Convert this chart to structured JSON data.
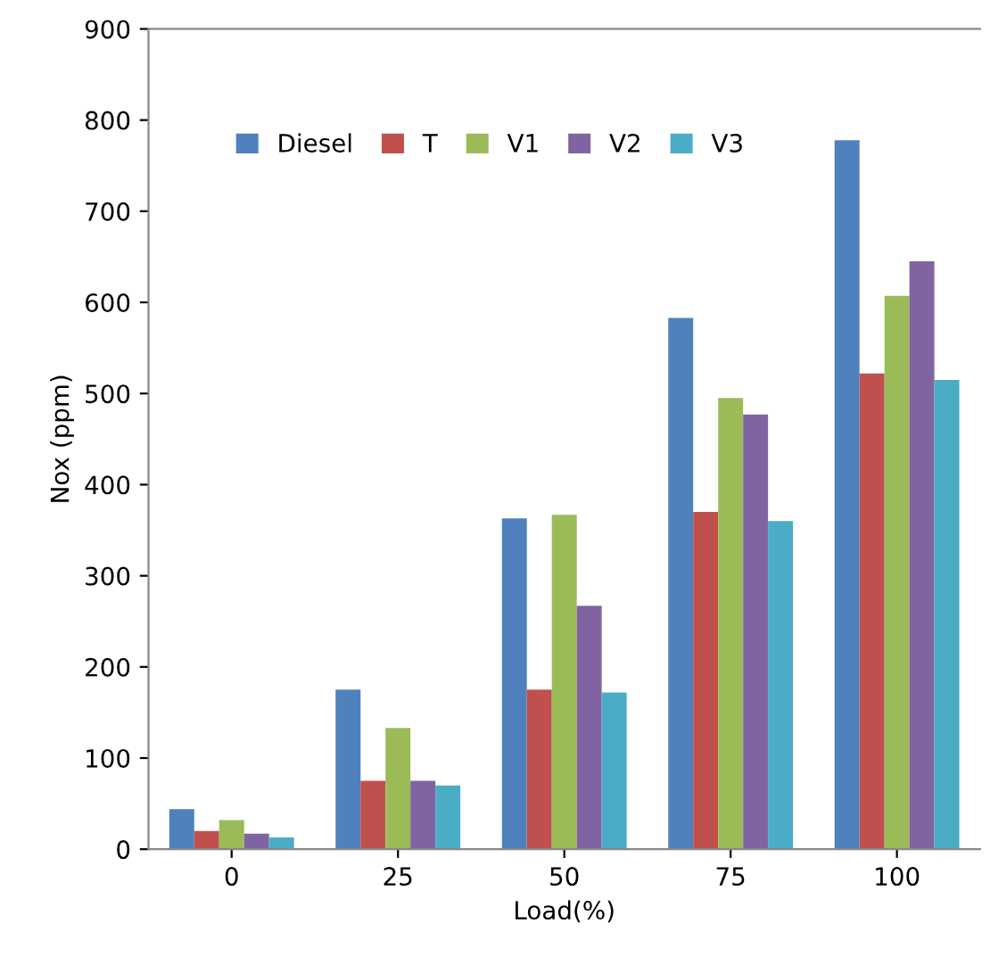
{
  "chart_data": {
    "type": "bar",
    "xlabel": "Load(%)",
    "ylabel": "Nox (ppm)",
    "categories": [
      "0",
      "25",
      "50",
      "75",
      "100"
    ],
    "series": [
      {
        "name": "Diesel",
        "color": "#4f81bd",
        "values": [
          44,
          175,
          363,
          583,
          778
        ]
      },
      {
        "name": "T",
        "color": "#c0504d",
        "values": [
          20,
          75,
          175,
          370,
          522
        ]
      },
      {
        "name": "V1",
        "color": "#9bbb59",
        "values": [
          32,
          133,
          367,
          495,
          607
        ]
      },
      {
        "name": "V2",
        "color": "#8064a2",
        "values": [
          17,
          75,
          267,
          477,
          645
        ]
      },
      {
        "name": "V3",
        "color": "#4bacc6",
        "values": [
          13,
          70,
          172,
          360,
          515
        ]
      }
    ],
    "ylim": [
      0,
      900
    ],
    "yticks": [
      0,
      100,
      200,
      300,
      400,
      500,
      600,
      700,
      800,
      900
    ],
    "grid": false,
    "legend": "top left"
  }
}
